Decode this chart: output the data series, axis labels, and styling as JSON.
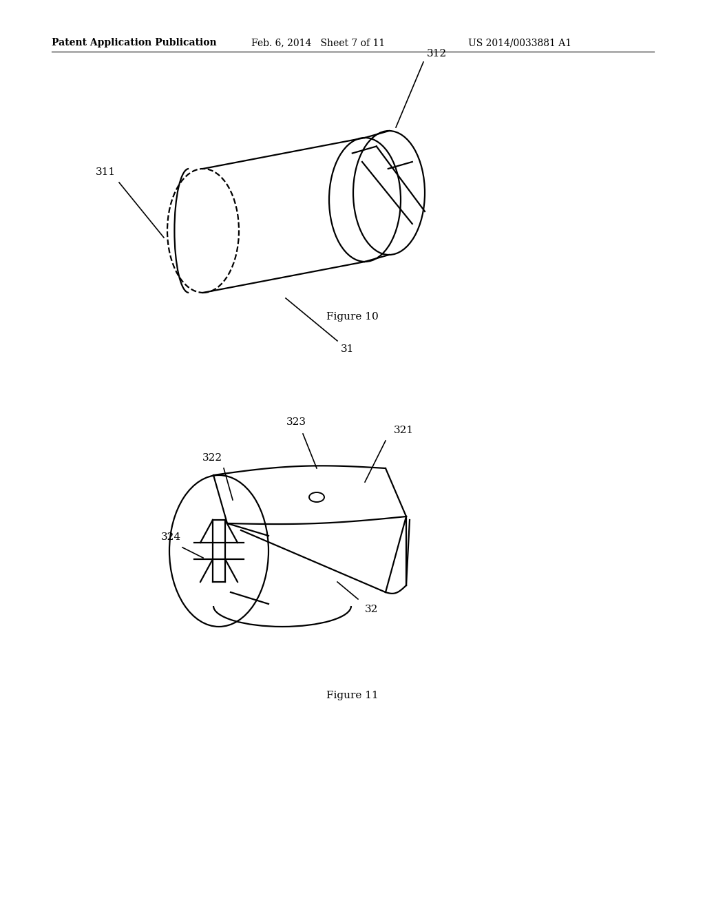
{
  "bg_color": "#ffffff",
  "line_color": "#000000",
  "header_left": "Patent Application Publication",
  "header_mid": "Feb. 6, 2014   Sheet 7 of 11",
  "header_right": "US 2014/0033881 A1",
  "fig10_caption": "Figure 10",
  "fig11_caption": "Figure 11",
  "lw_main": 1.6,
  "lw_thin": 1.2,
  "fontsize_label": 11,
  "fontsize_header": 10,
  "fontsize_caption": 11
}
